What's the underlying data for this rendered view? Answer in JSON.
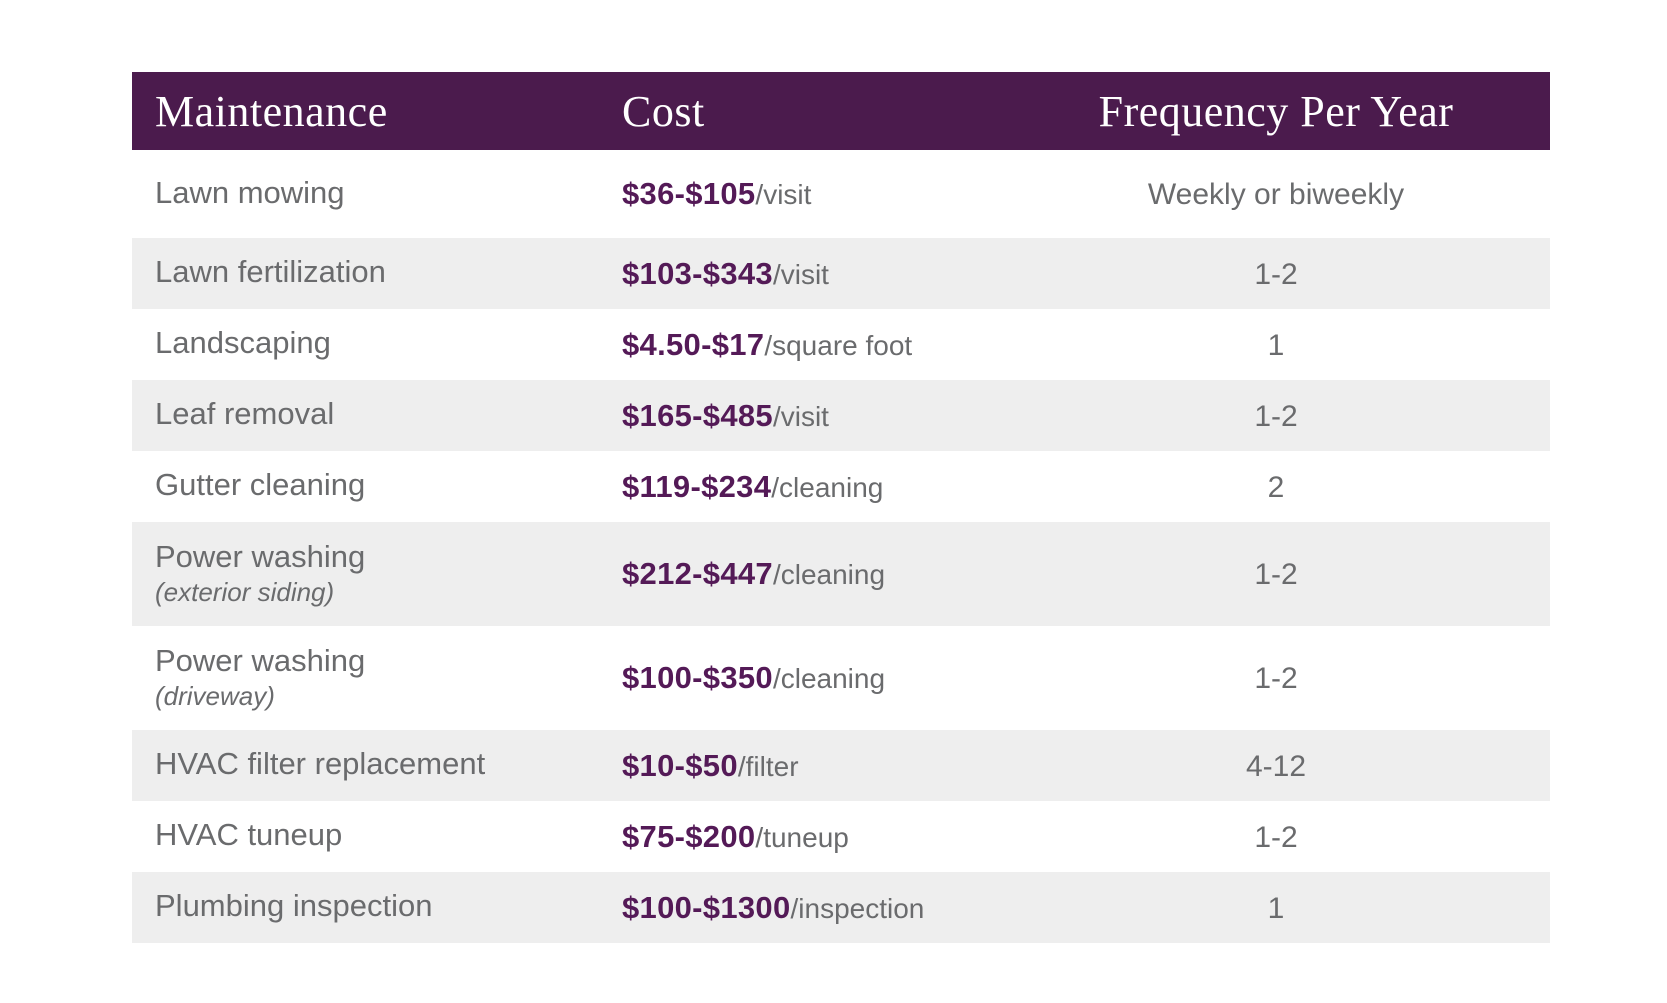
{
  "colors": {
    "header_bg": "#4B1B4D",
    "header_text": "#FFFFFF",
    "cost_text": "#541A57",
    "body_text": "#6A6B6D",
    "row_bg": "#FFFFFF",
    "row_alt_bg": "#EEEEEE"
  },
  "chart_data": {
    "type": "table",
    "columns": [
      "Maintenance",
      "Cost",
      "Frequency Per Year"
    ],
    "rows": [
      {
        "maintenance": "Lawn mowing",
        "maintenance_note": "",
        "cost_range": "$36-$105",
        "cost_unit": "/visit",
        "frequency_per_year": "Weekly or biweekly"
      },
      {
        "maintenance": "Lawn fertilization",
        "maintenance_note": "",
        "cost_range": "$103-$343",
        "cost_unit": "/visit",
        "frequency_per_year": "1-2"
      },
      {
        "maintenance": "Landscaping",
        "maintenance_note": "",
        "cost_range": "$4.50-$17",
        "cost_unit": "/square foot",
        "frequency_per_year": "1"
      },
      {
        "maintenance": "Leaf removal",
        "maintenance_note": "",
        "cost_range": "$165-$485",
        "cost_unit": "/visit",
        "frequency_per_year": "1-2"
      },
      {
        "maintenance": "Gutter cleaning",
        "maintenance_note": "",
        "cost_range": "$119-$234",
        "cost_unit": "/cleaning",
        "frequency_per_year": "2"
      },
      {
        "maintenance": "Power washing",
        "maintenance_note": "(exterior siding)",
        "cost_range": "$212-$447",
        "cost_unit": "/cleaning",
        "frequency_per_year": "1-2"
      },
      {
        "maintenance": "Power washing",
        "maintenance_note": "(driveway)",
        "cost_range": "$100-$350",
        "cost_unit": "/cleaning",
        "frequency_per_year": "1-2"
      },
      {
        "maintenance": "HVAC filter replacement",
        "maintenance_note": "",
        "cost_range": "$10-$50",
        "cost_unit": "/filter",
        "frequency_per_year": "4-12"
      },
      {
        "maintenance": "HVAC tuneup",
        "maintenance_note": "",
        "cost_range": "$75-$200",
        "cost_unit": "/tuneup",
        "frequency_per_year": "1-2"
      },
      {
        "maintenance": "Plumbing inspection",
        "maintenance_note": "",
        "cost_range": "$100-$1300",
        "cost_unit": "/inspection",
        "frequency_per_year": "1"
      }
    ]
  }
}
